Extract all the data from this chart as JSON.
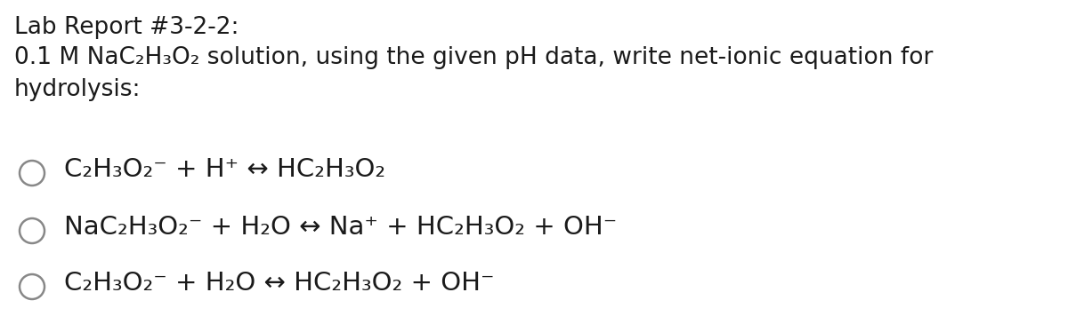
{
  "bg_color": "#ffffff",
  "title_line1": "Lab Report #3-2-2:",
  "title_line2": "0.1 M NaC₂H₃O₂ solution, using the given pH data, write net-ionic equation for",
  "title_line3": "hydrolysis:",
  "option1": "C₂H₃O₂⁻ + H⁺ ↔ HC₂H₃O₂",
  "option2": "NaC₂H₃O₂⁻ + H₂O ↔ Na⁺ + HC₂H₃O₂ + OH⁻",
  "option3": "C₂H₃O₂⁻ + H₂O ↔ HC₂H₃O₂ + OH⁻",
  "font_size_title": 19,
  "font_size_eq": 21,
  "text_color": "#1a1a1a",
  "circle_color": "#888888",
  "fig_width": 12.0,
  "fig_height": 3.65,
  "dpi": 100
}
